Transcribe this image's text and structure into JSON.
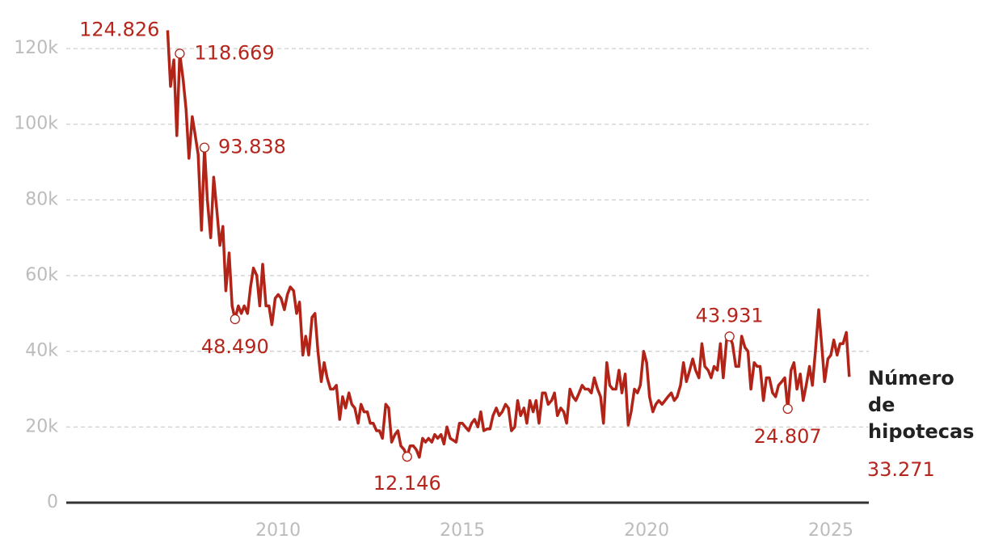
{
  "chart_data": {
    "type": "line",
    "x": [
      2007,
      2007.08,
      2007.17,
      2007.25,
      2007.33,
      2007.42,
      2007.5,
      2007.58,
      2007.67,
      2007.75,
      2007.83,
      2007.92,
      2008,
      2008.08,
      2008.17,
      2008.25,
      2008.33,
      2008.42,
      2008.5,
      2008.58,
      2008.67,
      2008.75,
      2008.83,
      2008.92,
      2009,
      2009.08,
      2009.17,
      2009.25,
      2009.33,
      2009.42,
      2009.5,
      2009.58,
      2009.67,
      2009.75,
      2009.83,
      2009.92,
      2010,
      2010.08,
      2010.17,
      2010.25,
      2010.33,
      2010.42,
      2010.5,
      2010.58,
      2010.67,
      2010.75,
      2010.83,
      2010.92,
      2011,
      2011.08,
      2011.17,
      2011.25,
      2011.33,
      2011.42,
      2011.5,
      2011.58,
      2011.67,
      2011.75,
      2011.83,
      2011.92,
      2012,
      2012.08,
      2012.17,
      2012.25,
      2012.33,
      2012.42,
      2012.5,
      2012.58,
      2012.67,
      2012.75,
      2012.83,
      2012.92,
      2013,
      2013.08,
      2013.17,
      2013.25,
      2013.33,
      2013.42,
      2013.5,
      2013.58,
      2013.67,
      2013.75,
      2013.83,
      2013.92,
      2014,
      2014.08,
      2014.17,
      2014.25,
      2014.33,
      2014.42,
      2014.5,
      2014.58,
      2014.67,
      2014.75,
      2014.83,
      2014.92,
      2015,
      2015.08,
      2015.17,
      2015.25,
      2015.33,
      2015.42,
      2015.5,
      2015.58,
      2015.67,
      2015.75,
      2015.83,
      2015.92,
      2016,
      2016.08,
      2016.17,
      2016.25,
      2016.33,
      2016.42,
      2016.5,
      2016.58,
      2016.67,
      2016.75,
      2016.83,
      2016.92,
      2017,
      2017.08,
      2017.17,
      2017.25,
      2017.33,
      2017.42,
      2017.5,
      2017.58,
      2017.67,
      2017.75,
      2017.83,
      2017.92,
      2018,
      2018.08,
      2018.17,
      2018.25,
      2018.33,
      2018.42,
      2018.5,
      2018.58,
      2018.67,
      2018.75,
      2018.83,
      2018.92,
      2019,
      2019.08,
      2019.17,
      2019.25,
      2019.33,
      2019.42,
      2019.5,
      2019.58,
      2019.67,
      2019.75,
      2019.83,
      2019.92,
      2020,
      2020.08,
      2020.17,
      2020.25,
      2020.33,
      2020.42,
      2020.5,
      2020.58,
      2020.67,
      2020.75,
      2020.83,
      2020.92,
      2021,
      2021.08,
      2021.17,
      2021.25,
      2021.33,
      2021.42,
      2021.5,
      2021.58,
      2021.67,
      2021.75,
      2021.83,
      2021.92,
      2022,
      2022.08,
      2022.17,
      2022.25,
      2022.33,
      2022.42,
      2022.5,
      2022.58,
      2022.67,
      2022.75,
      2022.83,
      2022.92,
      2023,
      2023.08,
      2023.17,
      2023.25,
      2023.33,
      2023.42,
      2023.5,
      2023.58,
      2023.67,
      2023.75,
      2023.83,
      2023.92,
      2024,
      2024.08,
      2024.17,
      2024.25,
      2024.33,
      2024.42,
      2024.5,
      2024.58,
      2024.67,
      2024.75,
      2024.83,
      2024.92,
      2025,
      2025.08,
      2025.17,
      2025.25,
      2025.33,
      2025.42,
      2025.5
    ],
    "series": [
      {
        "name": "Número de hipotecas",
        "color": "#b22418",
        "values": [
          124826,
          110000,
          117000,
          97000,
          118669,
          112000,
          104000,
          91000,
          102000,
          97000,
          92000,
          72000,
          93838,
          80000,
          70000,
          86000,
          78000,
          68000,
          73000,
          56000,
          66000,
          52000,
          48490,
          52000,
          50000,
          52000,
          50000,
          57000,
          62000,
          60000,
          52000,
          63000,
          52000,
          52000,
          47000,
          54000,
          55000,
          54000,
          51000,
          55000,
          57000,
          56000,
          50000,
          53000,
          39000,
          44000,
          39000,
          49000,
          50000,
          40000,
          32000,
          37000,
          33000,
          30000,
          30000,
          31000,
          22000,
          28000,
          25000,
          29000,
          26000,
          25000,
          21000,
          26000,
          24000,
          24000,
          21000,
          21000,
          19000,
          19000,
          17000,
          26000,
          25000,
          16000,
          18000,
          19000,
          15000,
          14000,
          12146,
          15000,
          15000,
          14000,
          12000,
          17000,
          16000,
          17000,
          16000,
          18000,
          17000,
          18000,
          15500,
          20000,
          17000,
          16500,
          16000,
          21000,
          21000,
          20000,
          19000,
          21000,
          22000,
          20000,
          24000,
          19000,
          19500,
          19500,
          23000,
          25000,
          23000,
          24000,
          26000,
          25000,
          19000,
          20000,
          27000,
          23000,
          25000,
          21000,
          27000,
          24000,
          27000,
          21000,
          29000,
          29000,
          26000,
          27000,
          29000,
          23000,
          25000,
          24000,
          21000,
          30000,
          28000,
          27000,
          29000,
          31000,
          30000,
          30000,
          29000,
          33000,
          30000,
          28000,
          21000,
          37000,
          31000,
          30000,
          30000,
          35000,
          29000,
          34000,
          20500,
          24000,
          30000,
          29000,
          31000,
          40000,
          37000,
          28000,
          24000,
          26000,
          27000,
          26000,
          27000,
          28000,
          29000,
          27000,
          28000,
          31000,
          37000,
          32000,
          35000,
          38000,
          35000,
          33000,
          42000,
          36000,
          35000,
          33000,
          36000,
          35000,
          42000,
          33000,
          43000,
          43931,
          42000,
          36000,
          36000,
          44000,
          41000,
          40000,
          30000,
          37000,
          36000,
          36000,
          27000,
          33000,
          33000,
          29000,
          28000,
          31000,
          32000,
          33000,
          24807,
          35000,
          37000,
          30000,
          34000,
          27000,
          31000,
          36000,
          31000,
          40000,
          51000,
          42000,
          32000,
          38000,
          39000,
          43000,
          39000,
          42000,
          42000,
          45000,
          33271
        ],
        "value_labels": [
          "124.826",
          null,
          null,
          null,
          "118.669",
          null,
          null,
          null,
          null,
          null,
          null,
          null,
          "93.838",
          null,
          null,
          null,
          null,
          null,
          null,
          null,
          null,
          null,
          "48.490",
          null,
          null,
          null,
          null,
          null,
          null,
          null,
          null,
          null,
          null,
          null,
          null,
          null,
          null,
          null,
          null,
          null,
          null,
          null,
          null,
          null,
          null,
          null,
          null,
          null,
          null,
          null,
          null,
          null,
          null,
          null,
          null,
          null,
          null,
          null,
          null,
          null,
          null,
          null,
          null,
          null,
          null,
          null,
          null,
          null,
          null,
          null,
          null,
          null,
          null,
          null,
          null,
          null,
          null,
          null,
          "12.146",
          null,
          null,
          null,
          null,
          null,
          null,
          null,
          null,
          null,
          null,
          null,
          null,
          null,
          null,
          null,
          null,
          null,
          null,
          null,
          null,
          null,
          null,
          null,
          null,
          null,
          null,
          null,
          null,
          null,
          null,
          null,
          null,
          null,
          null,
          null,
          null,
          null,
          null,
          null,
          null,
          null,
          null,
          null,
          null,
          null,
          null,
          null,
          null,
          null,
          null,
          null,
          null,
          null,
          null,
          null,
          null,
          null,
          null,
          null,
          null,
          null,
          null,
          null,
          null,
          null,
          null,
          null,
          null,
          null,
          null,
          null,
          null,
          null,
          null,
          null,
          null,
          null,
          null,
          null,
          null,
          null,
          null,
          null,
          null,
          null,
          null,
          null,
          null,
          null,
          null,
          null,
          null,
          null,
          null,
          null,
          null,
          null,
          null,
          null,
          null,
          null,
          null,
          null,
          null,
          "43.931",
          null,
          null,
          null,
          null,
          null,
          null,
          null,
          null,
          null,
          null,
          null,
          null,
          null,
          null,
          null,
          null,
          null,
          null,
          "24.807",
          null,
          null,
          null,
          null,
          null,
          null,
          null,
          null,
          null,
          null,
          null,
          null,
          null,
          null,
          null,
          null,
          null,
          null,
          null,
          "33.271"
        ]
      }
    ],
    "xlim": [
      2004.25,
      2026.03
    ],
    "xticks": [
      2010,
      2015,
      2020,
      2025
    ],
    "ylim": [
      0,
      126000
    ],
    "yticks": [
      0,
      {
        "value": 20000,
        "label": "20k"
      },
      {
        "value": 40000,
        "label": "40k"
      },
      {
        "value": 60000,
        "label": "60k"
      },
      {
        "value": 80000,
        "label": "80k"
      },
      {
        "value": 100000,
        "label": "100k"
      },
      {
        "value": 120000,
        "label": "120k"
      }
    ],
    "grid": true
  }
}
